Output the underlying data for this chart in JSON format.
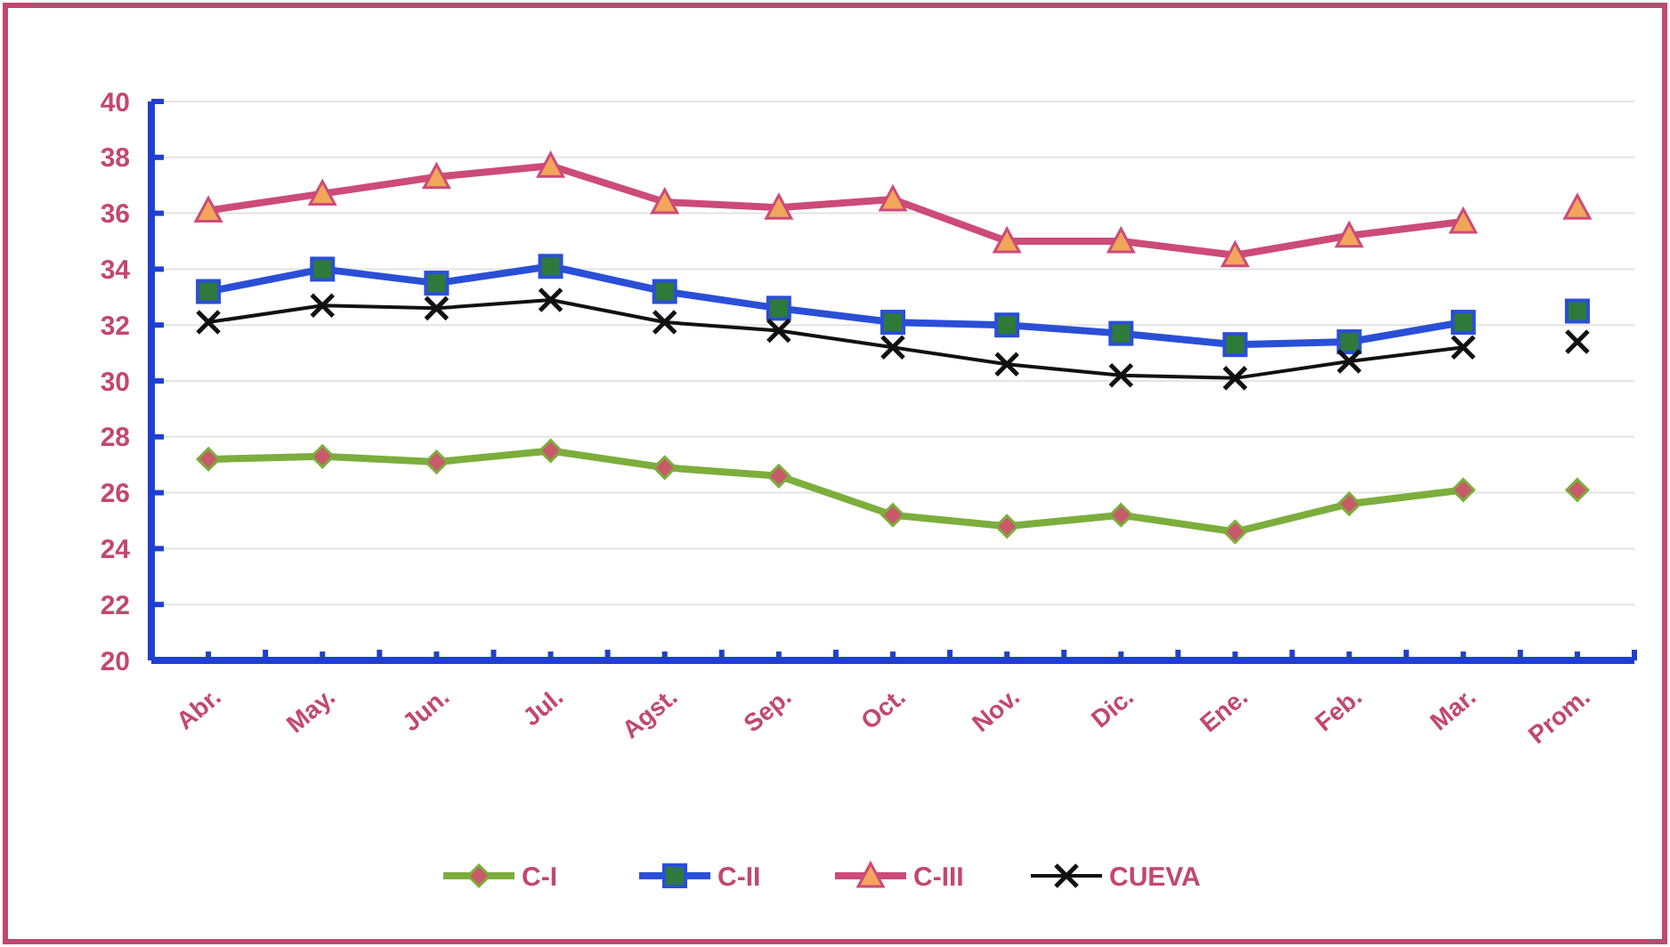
{
  "chart_data": {
    "type": "line",
    "categories": [
      "Abr.",
      "May.",
      "Jun.",
      "Jul.",
      "Agst.",
      "Sep.",
      "Oct.",
      "Nov.",
      "Dic.",
      "Ene.",
      "Feb.",
      "Mar.",
      "Prom."
    ],
    "ylim": [
      20,
      40
    ],
    "yticks": [
      20,
      22,
      24,
      26,
      28,
      30,
      32,
      34,
      36,
      38,
      40
    ],
    "grid": "y",
    "legend": "bottom",
    "series": [
      {
        "name": "C-I",
        "color": "#7cae3c",
        "marker": "diamond",
        "values": [
          27.2,
          27.3,
          27.1,
          27.5,
          26.9,
          26.6,
          25.2,
          24.8,
          25.2,
          24.6,
          25.6,
          26.1,
          null
        ]
      },
      {
        "name": "C-II",
        "color": "#2a4fd6",
        "marker": "square",
        "values": [
          33.2,
          34.0,
          33.5,
          34.1,
          33.2,
          32.6,
          32.1,
          32.0,
          31.7,
          31.3,
          31.4,
          32.1,
          null
        ]
      },
      {
        "name": "C-III",
        "color": "#cc4b78",
        "marker": "triangle",
        "values": [
          36.1,
          36.7,
          37.3,
          37.7,
          36.4,
          36.2,
          36.5,
          35.0,
          35.0,
          34.5,
          35.2,
          35.7,
          null
        ]
      },
      {
        "name": "CUEVA",
        "color": "#111111",
        "marker": "cross",
        "values": [
          32.1,
          32.7,
          32.6,
          32.9,
          32.1,
          31.8,
          31.2,
          30.6,
          30.2,
          30.1,
          30.7,
          31.2,
          null
        ]
      },
      {
        "type": "scatter",
        "x": [
          "Prom."
        ],
        "color": "#7cae3c",
        "marker": "diamond",
        "values": [
          26.1
        ]
      },
      {
        "type": "scatter",
        "x": [
          "Prom."
        ],
        "color": "#2a4fd6",
        "marker": "square",
        "values": [
          32.5
        ]
      },
      {
        "type": "scatter",
        "x": [
          "Prom."
        ],
        "color": "#cc4b78",
        "marker": "triangle",
        "values": [
          36.2
        ]
      },
      {
        "type": "scatter",
        "x": [
          "Prom."
        ],
        "color": "#111111",
        "marker": "cross",
        "values": [
          31.4
        ]
      }
    ]
  }
}
